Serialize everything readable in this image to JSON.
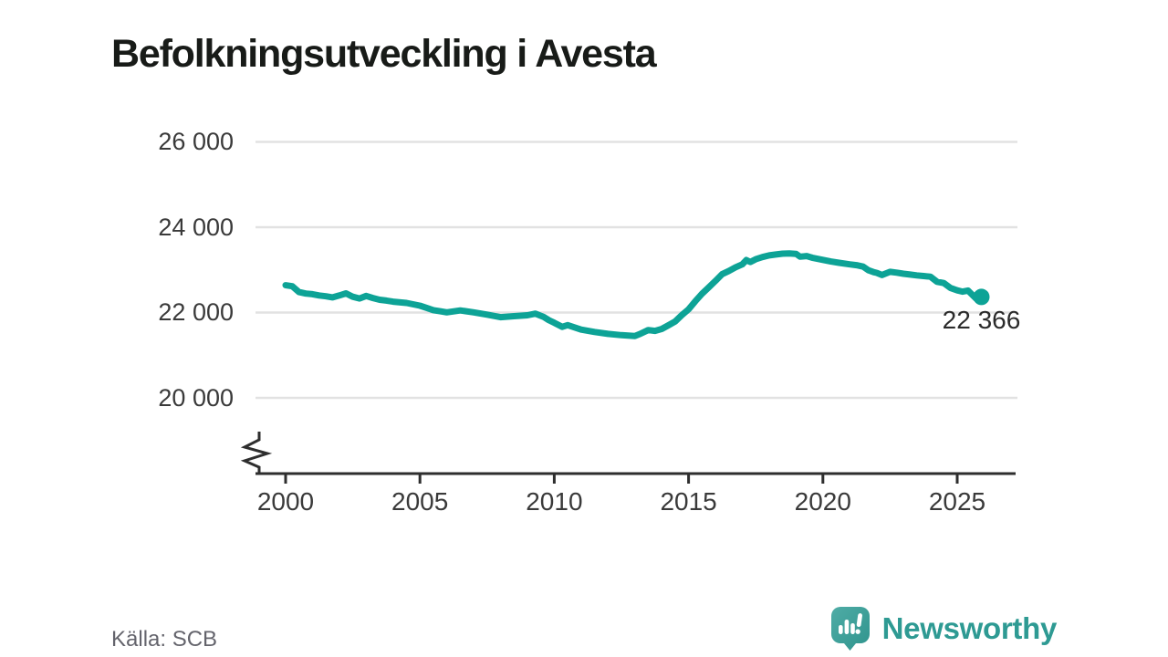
{
  "title": "Befolkningsutveckling i Avesta",
  "source": {
    "label": "Källa: SCB"
  },
  "branding": {
    "name": "Newsworthy",
    "icon": "newsworthy-speech-bubble-bar-chart-icon",
    "text_color": "#2e9a93",
    "icon_color_top": "#4faca6",
    "icon_color_bottom": "#2f948d"
  },
  "chart_data": {
    "type": "line",
    "title": "Befolkningsutveckling i Avesta",
    "xlabel": "",
    "ylabel": "",
    "grid": "horizontal",
    "axis_break_bottom": true,
    "line_color": "#0da396",
    "grid_color": "#e2e2e2",
    "axis_color": "#2e2e2e",
    "x_ticks": [
      {
        "label": "2000",
        "year": 2000
      },
      {
        "label": "2005",
        "year": 2005
      },
      {
        "label": "2010",
        "year": 2010
      },
      {
        "label": "2015",
        "year": 2015
      },
      {
        "label": "2020",
        "year": 2020
      },
      {
        "label": "2025",
        "year": 2025
      }
    ],
    "y_ticks": [
      {
        "label": "26 000",
        "value": 26000
      },
      {
        "label": "24 000",
        "value": 24000
      },
      {
        "label": "22 000",
        "value": 22000
      },
      {
        "label": "20 000",
        "value": 20000
      }
    ],
    "x_range": [
      1999.2,
      2027.2
    ],
    "y_axis_shown_range": [
      20000,
      26000
    ],
    "end_label": "22 366",
    "end_value": 22366,
    "series": [
      {
        "name": "Befolkning i Avesta",
        "points": [
          [
            2000.0,
            22640
          ],
          [
            2000.25,
            22615
          ],
          [
            2000.5,
            22480
          ],
          [
            2000.75,
            22445
          ],
          [
            2001.0,
            22430
          ],
          [
            2001.25,
            22400
          ],
          [
            2001.5,
            22380
          ],
          [
            2001.75,
            22355
          ],
          [
            2002.0,
            22400
          ],
          [
            2002.25,
            22450
          ],
          [
            2002.5,
            22370
          ],
          [
            2002.75,
            22330
          ],
          [
            2003.0,
            22390
          ],
          [
            2003.25,
            22340
          ],
          [
            2003.5,
            22300
          ],
          [
            2003.75,
            22280
          ],
          [
            2004.0,
            22255
          ],
          [
            2004.5,
            22225
          ],
          [
            2005.0,
            22160
          ],
          [
            2005.25,
            22110
          ],
          [
            2005.5,
            22055
          ],
          [
            2005.75,
            22030
          ],
          [
            2006.0,
            22005
          ],
          [
            2006.5,
            22050
          ],
          [
            2007.0,
            22005
          ],
          [
            2007.5,
            21950
          ],
          [
            2008.0,
            21890
          ],
          [
            2008.5,
            21915
          ],
          [
            2009.0,
            21935
          ],
          [
            2009.3,
            21975
          ],
          [
            2009.6,
            21900
          ],
          [
            2009.8,
            21820
          ],
          [
            2010.0,
            21760
          ],
          [
            2010.3,
            21665
          ],
          [
            2010.5,
            21705
          ],
          [
            2011.0,
            21600
          ],
          [
            2011.5,
            21545
          ],
          [
            2012.0,
            21500
          ],
          [
            2012.5,
            21470
          ],
          [
            2013.0,
            21450
          ],
          [
            2013.2,
            21500
          ],
          [
            2013.5,
            21590
          ],
          [
            2013.75,
            21570
          ],
          [
            2014.0,
            21615
          ],
          [
            2014.25,
            21700
          ],
          [
            2014.5,
            21790
          ],
          [
            2014.75,
            21940
          ],
          [
            2015.0,
            22075
          ],
          [
            2015.25,
            22265
          ],
          [
            2015.5,
            22440
          ],
          [
            2015.75,
            22590
          ],
          [
            2016.0,
            22740
          ],
          [
            2016.25,
            22900
          ],
          [
            2016.5,
            22975
          ],
          [
            2016.75,
            23060
          ],
          [
            2017.0,
            23130
          ],
          [
            2017.15,
            23230
          ],
          [
            2017.3,
            23185
          ],
          [
            2017.5,
            23250
          ],
          [
            2017.75,
            23300
          ],
          [
            2018.0,
            23340
          ],
          [
            2018.25,
            23360
          ],
          [
            2018.5,
            23380
          ],
          [
            2018.75,
            23385
          ],
          [
            2019.0,
            23375
          ],
          [
            2019.15,
            23310
          ],
          [
            2019.4,
            23325
          ],
          [
            2019.6,
            23285
          ],
          [
            2020.0,
            23235
          ],
          [
            2020.3,
            23195
          ],
          [
            2020.6,
            23165
          ],
          [
            2021.0,
            23130
          ],
          [
            2021.25,
            23110
          ],
          [
            2021.5,
            23075
          ],
          [
            2021.7,
            22990
          ],
          [
            2021.9,
            22945
          ],
          [
            2022.0,
            22930
          ],
          [
            2022.2,
            22880
          ],
          [
            2022.5,
            22955
          ],
          [
            2022.75,
            22935
          ],
          [
            2023.0,
            22910
          ],
          [
            2023.25,
            22890
          ],
          [
            2023.5,
            22870
          ],
          [
            2023.75,
            22855
          ],
          [
            2024.0,
            22840
          ],
          [
            2024.25,
            22720
          ],
          [
            2024.5,
            22690
          ],
          [
            2024.75,
            22575
          ],
          [
            2025.0,
            22520
          ],
          [
            2025.2,
            22490
          ],
          [
            2025.4,
            22515
          ],
          [
            2025.7,
            22330
          ],
          [
            2025.9,
            22366
          ]
        ]
      }
    ]
  }
}
